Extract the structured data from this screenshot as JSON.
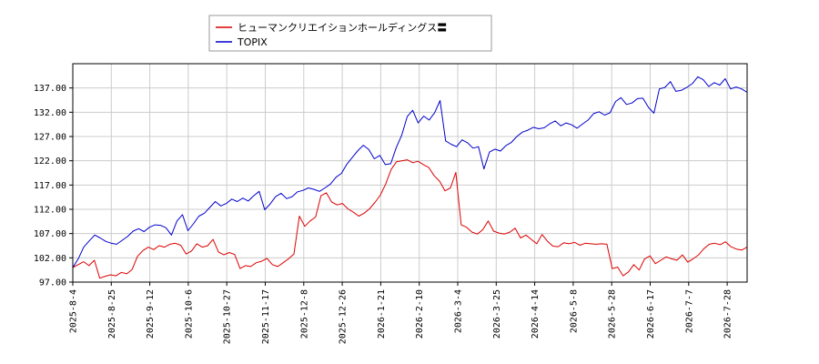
{
  "chart_data": {
    "type": "line",
    "legend": {
      "placement": "top-center",
      "entries": [
        {
          "label": "ヒューマンクリエイションホールディングス〓",
          "color": "#dd0000"
        },
        {
          "label": "TOPIX",
          "color": "#0000cc"
        }
      ]
    },
    "x_ticks": [
      "2025-8-4",
      "2025-8-25",
      "2025-9-12",
      "2025-10-6",
      "2025-10-27",
      "2025-11-17",
      "2025-12-8",
      "2025-12-26",
      "2026-1-21",
      "2026-2-10",
      "2026-3-4",
      "2026-3-25",
      "2026-4-14",
      "2026-5-8",
      "2026-5-28",
      "2026-6-17",
      "2026-7-7",
      "2026-7-28"
    ],
    "y_ticks": [
      "97.00",
      "102.00",
      "107.00",
      "112.00",
      "117.00",
      "122.00",
      "127.00",
      "132.00",
      "137.00"
    ],
    "ylim": [
      97,
      142
    ],
    "grid": true,
    "series": [
      {
        "name": "ヒューマンクリエイションホールディングス〓",
        "color": "#dd0000",
        "values": [
          100,
          100.6,
          101.2,
          100.4,
          101.5,
          97.8,
          98.2,
          98.5,
          98.3,
          99.0,
          98.7,
          99.6,
          102.3,
          103.5,
          104.2,
          103.7,
          104.5,
          104.2,
          104.8,
          105.0,
          104.6,
          102.8,
          103.4,
          104.9,
          104.2,
          104.5,
          105.8,
          103.2,
          102.6,
          103.1,
          102.7,
          99.8,
          100.4,
          100.2,
          101.0,
          101.3,
          101.9,
          100.6,
          100.2,
          101.0,
          101.8,
          102.8,
          110.6,
          108.5,
          109.6,
          110.4,
          114.8,
          115.4,
          113.5,
          112.9,
          113.2,
          112.1,
          111.4,
          110.6,
          111.2,
          112.1,
          113.4,
          114.9,
          117.2,
          120.2,
          121.8,
          122.0,
          122.2,
          121.6,
          121.9,
          121.2,
          120.6,
          118.9,
          117.8,
          115.8,
          116.4,
          119.6,
          108.8,
          108.3,
          107.3,
          106.9,
          107.8,
          109.6,
          107.5,
          107.1,
          106.9,
          107.3,
          108.1,
          106.1,
          106.7,
          105.8,
          104.9,
          106.8,
          105.4,
          104.4,
          104.3,
          105.1,
          104.9,
          105.2,
          104.6,
          105.0,
          104.9,
          104.8,
          104.9,
          104.8,
          99.8,
          100.1,
          98.3,
          99.1,
          100.6,
          99.5,
          101.8,
          102.4,
          100.8,
          101.5,
          102.2,
          101.8,
          101.5,
          102.6,
          101.1,
          101.8,
          102.6,
          103.9,
          104.8,
          105.0,
          104.7,
          105.3,
          104.3,
          103.8,
          103.6,
          104.2
        ]
      },
      {
        "name": "TOPIX",
        "color": "#0000cc",
        "values": [
          100,
          101.8,
          104.2,
          105.5,
          106.7,
          106.1,
          105.4,
          105.0,
          104.8,
          105.6,
          106.4,
          107.5,
          108.0,
          107.4,
          108.3,
          108.8,
          108.7,
          108.2,
          106.7,
          109.6,
          110.9,
          107.6,
          109.0,
          110.6,
          111.2,
          112.4,
          113.6,
          112.7,
          113.2,
          114.1,
          113.6,
          114.3,
          113.7,
          114.8,
          115.7,
          111.9,
          113.1,
          114.6,
          115.3,
          114.2,
          114.6,
          115.6,
          115.9,
          116.4,
          116.1,
          115.7,
          116.4,
          117.2,
          118.6,
          119.4,
          121.3,
          122.7,
          124.1,
          125.2,
          124.3,
          122.4,
          123.1,
          121.2,
          121.4,
          124.7,
          127.3,
          131.1,
          132.4,
          129.8,
          131.2,
          130.4,
          131.9,
          134.4,
          126.1,
          125.4,
          124.9,
          126.3,
          125.7,
          124.6,
          124.9,
          120.3,
          123.8,
          124.4,
          124.0,
          125.1,
          125.8,
          127.0,
          127.9,
          128.3,
          128.9,
          128.6,
          128.8,
          129.6,
          130.2,
          129.2,
          129.8,
          129.4,
          128.7,
          129.6,
          130.4,
          131.7,
          132.1,
          131.4,
          131.9,
          134.2,
          135.0,
          133.6,
          133.9,
          134.8,
          134.9,
          133.0,
          131.8,
          136.8,
          137.1,
          138.3,
          136.3,
          136.5,
          137.1,
          137.9,
          139.3,
          138.7,
          137.3,
          138.1,
          137.6,
          138.9,
          136.8,
          137.2,
          136.8,
          136.1
        ]
      }
    ]
  }
}
